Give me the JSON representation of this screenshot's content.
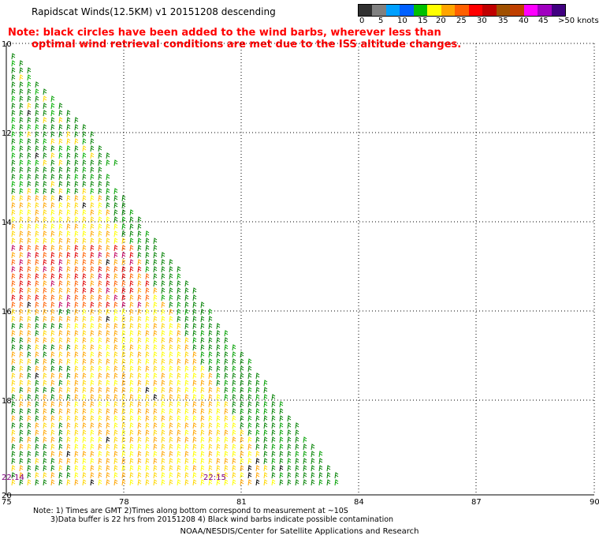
{
  "header": {
    "title": "Rapidscat Winds(12.5KM) v1 20151208 descending",
    "note_line1": "Note: black circles have been added to the wind barbs, wherever less than",
    "note_line2": "optimal wind retrieval conditions are met due to the ISS altitude changes."
  },
  "color_scale": {
    "unit": ">50 knots",
    "labels": [
      "0",
      "5",
      "10",
      "15",
      "20",
      "25",
      "30",
      "35",
      "40",
      "45"
    ],
    "colors": [
      "#303030",
      "#808080",
      "#00a0ff",
      "#0060ff",
      "#00c000",
      "#ffff00",
      "#ffa500",
      "#ff6000",
      "#ff0000",
      "#c00000",
      "#a05000",
      "#c04000",
      "#ff00ff",
      "#a000c0",
      "#400080"
    ]
  },
  "map": {
    "x_ticks": [
      "75",
      "78",
      "81",
      "84",
      "87",
      "90"
    ],
    "y_ticks": [
      "10",
      "12",
      "14",
      "16",
      "18",
      "20"
    ],
    "time_labels": [
      "22:14",
      "22:15"
    ]
  },
  "footer": {
    "line1": "Note: 1) Times are GMT 2)Times along bottom correspond to measurement at ~10S",
    "line2": "3)Data buffer is 22 hrs from 20151208 4) Black wind barbs indicate possible contamination",
    "credit": "NOAA/NESDIS/Center for Satellite Applications and Research"
  }
}
